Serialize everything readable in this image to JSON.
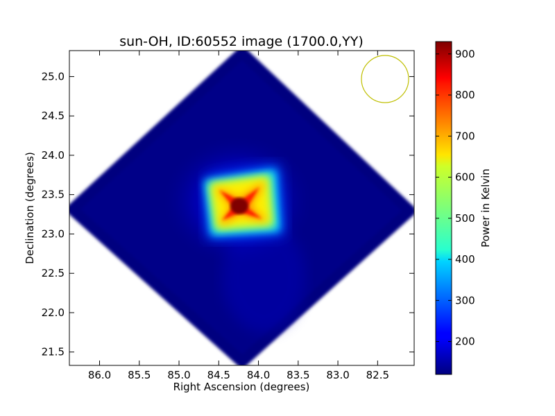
{
  "chart_data": {
    "type": "heatmap",
    "title": "sun-OH, ID:60552 image (1700.0,YY)",
    "xlabel": "Right Ascension (degrees)",
    "ylabel": "Declination (degrees)",
    "xlim": [
      86.38,
      82.04
    ],
    "ylim": [
      21.33,
      25.33
    ],
    "xticks": [
      "86.0",
      "85.5",
      "85.0",
      "84.5",
      "84.0",
      "83.5",
      "83.0",
      "82.5"
    ],
    "xtick_values": [
      86.0,
      85.5,
      85.0,
      84.5,
      84.0,
      83.5,
      83.0,
      82.5
    ],
    "yticks": [
      "21.5",
      "22.0",
      "22.5",
      "23.0",
      "23.5",
      "24.0",
      "24.5",
      "25.0"
    ],
    "ytick_values": [
      21.5,
      22.0,
      22.5,
      23.0,
      23.5,
      24.0,
      24.5,
      25.0
    ],
    "colorbar": {
      "label": "Power in Kelvin",
      "range": [
        120,
        930
      ],
      "ticks": [
        "200",
        "300",
        "400",
        "500",
        "600",
        "700",
        "800",
        "900"
      ],
      "tick_values": [
        200,
        300,
        400,
        500,
        600,
        700,
        800,
        900
      ],
      "colormap": "jet"
    },
    "peak": {
      "ra": 84.25,
      "dec": 23.33,
      "value": 930
    },
    "background_value": 130,
    "map_outline": "diamond",
    "map_center": {
      "ra": 84.25,
      "dec": 23.33
    },
    "beam_marker": {
      "ra": 82.37,
      "dec": 24.97,
      "radius_deg": 0.3,
      "color": "#bfbf00"
    },
    "grid": false
  }
}
